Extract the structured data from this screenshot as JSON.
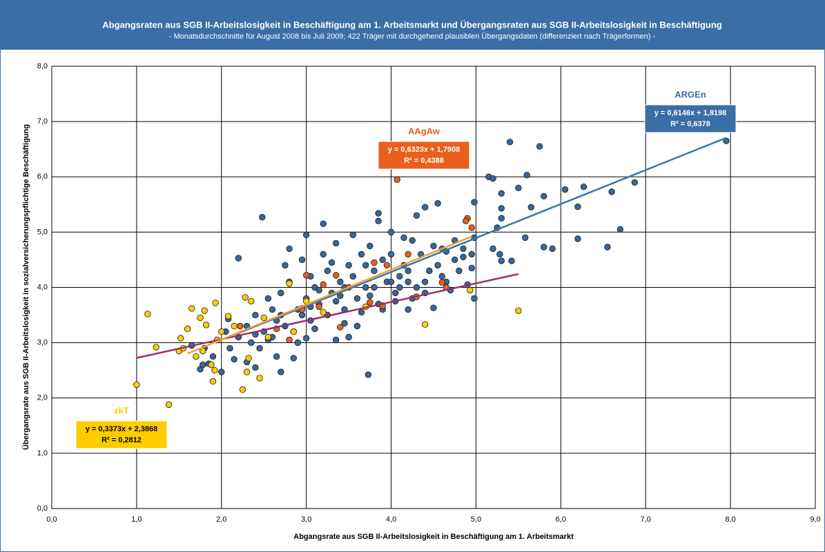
{
  "chart_data": {
    "type": "scatter",
    "title": "Abgangsraten aus SGB II-Arbeitslosigkeit in Beschäftigung am 1. Arbeitsmarkt und Übergangsraten aus SGB II-Arbeitslosigkeit in Beschäftigung",
    "subtitle": "- Monatsdurchschnitte für August 2008 bis Juli 2009; 422 Träger mit durchgehend plausiblen Übergangsdaten (differenziert nach Trägerformen) -",
    "x_label": "Abgangsrate aus SGB II-Arbeitslosigkeit in Beschäftigung am 1. Arbeitsmarkt",
    "y_label": "Übergangsrate aus SGB II-Arbeitslosigkeit in sozialversicherungspflichtige Beschäftigung",
    "xlim": [
      0,
      9
    ],
    "ylim": [
      0,
      8
    ],
    "grid": true,
    "xticks": [
      {
        "value": 0,
        "label": "0,0"
      },
      {
        "value": 1,
        "label": "1,0"
      },
      {
        "value": 2,
        "label": "2,0"
      },
      {
        "value": 3,
        "label": "3,0"
      },
      {
        "value": 4,
        "label": "4,0"
      },
      {
        "value": 5,
        "label": "5,0"
      },
      {
        "value": 6,
        "label": "6,0"
      },
      {
        "value": 7,
        "label": "7,0"
      },
      {
        "value": 8,
        "label": "8,0"
      },
      {
        "value": 9,
        "label": "9,0"
      }
    ],
    "yticks": [
      {
        "value": 0,
        "label": "0,0"
      },
      {
        "value": 1,
        "label": "1,0"
      },
      {
        "value": 2,
        "label": "2,0"
      },
      {
        "value": 3,
        "label": "3,0"
      },
      {
        "value": 4,
        "label": "4,0"
      },
      {
        "value": 5,
        "label": "5,0"
      },
      {
        "value": 6,
        "label": "6,0"
      },
      {
        "value": 7,
        "label": "7,0"
      },
      {
        "value": 8,
        "label": "8,0"
      }
    ],
    "series": [
      {
        "name": "ARGEn",
        "color": "#3a6796",
        "line_color": "#3f74a9",
        "trend": {
          "equation": "y = 0,6146x + 1,8198",
          "r2": "R² = 0,6378",
          "slope": 0.6146,
          "intercept": 1.8198,
          "x_range": [
            2.2,
            7.95
          ]
        },
        "x": [
          7.95,
          5.4,
          5.75,
          5.15,
          5.6,
          5.2,
          6.05,
          6.27,
          6.6,
          6.87,
          5.8,
          5.5,
          5.3,
          6.2,
          5.65,
          5.3,
          4.98,
          4.55,
          4.4,
          5.3,
          5.25,
          6.7,
          5.58,
          6.2,
          6.55,
          5.8,
          5.9,
          5.2,
          5.28,
          5.3,
          5.42,
          4.98,
          4.95,
          4.98,
          4.5,
          4.2,
          3.73,
          2.48,
          3.2,
          2.2,
          2.7,
          1.65,
          1.75,
          1.78,
          1.85,
          2.0,
          2.08,
          2.4,
          2.65,
          2.85,
          3.35,
          3.5,
          3.0,
          2.3,
          2.4,
          2.5,
          2.6,
          2.7,
          2.75,
          2.8,
          2.9,
          2.95,
          3.0,
          3.05,
          3.1,
          3.15,
          3.2,
          3.25,
          3.3,
          3.35,
          3.4,
          3.45,
          3.5,
          3.55,
          3.6,
          3.65,
          3.7,
          3.75,
          3.8,
          3.85,
          3.9,
          3.95,
          4.0,
          4.05,
          4.1,
          4.15,
          4.2,
          4.25,
          4.3,
          4.35,
          4.4,
          4.45,
          4.5,
          4.55,
          4.6,
          4.65,
          4.7,
          4.75,
          4.8,
          4.85,
          4.9,
          2.35,
          2.45,
          2.55,
          2.65,
          2.85,
          3.05,
          3.25,
          3.45,
          3.65,
          3.85,
          4.05,
          2.2,
          2.1,
          2.05,
          1.9,
          1.8,
          2.15,
          2.3,
          2.55,
          2.8,
          3.0,
          3.3,
          3.55,
          3.85,
          4.0,
          4.3,
          3.6,
          3.9,
          4.25,
          4.6,
          4.85,
          3.45,
          3.15,
          2.95,
          2.75,
          3.7,
          4.1,
          4.4,
          3.35,
          3.1,
          2.6,
          2.9,
          3.75,
          4.15,
          3.8,
          4.0,
          4.2,
          2.4,
          2.7,
          3.05,
          3.4,
          4.65,
          4.75,
          4.95
        ],
        "values": [
          6.65,
          6.63,
          6.55,
          6.0,
          6.03,
          5.97,
          5.77,
          5.82,
          5.73,
          5.9,
          5.65,
          5.8,
          5.7,
          5.46,
          5.45,
          5.43,
          5.54,
          5.52,
          5.45,
          5.25,
          5.08,
          5.05,
          4.9,
          4.88,
          4.73,
          4.73,
          4.7,
          4.7,
          4.6,
          4.48,
          4.48,
          4.9,
          4.35,
          3.8,
          3.63,
          3.6,
          2.42,
          5.27,
          5.15,
          4.53,
          2.47,
          2.95,
          2.52,
          2.6,
          2.62,
          2.47,
          3.43,
          2.55,
          2.75,
          2.72,
          3.05,
          3.1,
          3.08,
          3.3,
          3.5,
          3.2,
          3.6,
          3.9,
          4.4,
          4.1,
          3.6,
          4.5,
          3.8,
          4.2,
          4.0,
          3.7,
          4.6,
          4.3,
          3.9,
          4.8,
          4.1,
          3.6,
          4.4,
          4.2,
          3.8,
          4.6,
          4.0,
          4.75,
          4.3,
          5.2,
          4.5,
          4.1,
          4.6,
          3.9,
          4.2,
          4.4,
          4.1,
          4.85,
          4.0,
          4.6,
          3.9,
          4.3,
          4.75,
          4.4,
          4.2,
          4.65,
          3.95,
          4.85,
          4.3,
          4.7,
          4.05,
          3.0,
          2.9,
          3.05,
          3.4,
          3.2,
          3.4,
          3.5,
          3.35,
          3.55,
          3.7,
          3.75,
          3.1,
          2.9,
          3.2,
          2.75,
          2.9,
          2.7,
          2.65,
          3.8,
          4.7,
          4.95,
          4.45,
          4.95,
          5.34,
          5.0,
          5.3,
          3.3,
          3.6,
          3.8,
          4.7,
          4.55,
          4.0,
          3.95,
          3.5,
          3.3,
          4.4,
          4.0,
          4.1,
          3.75,
          3.25,
          3.1,
          3.0,
          3.85,
          4.9,
          4.0,
          4.1,
          4.3,
          3.15,
          3.5,
          3.65,
          3.85,
          4.1,
          4.5,
          4.6
        ]
      },
      {
        "name": "zkT",
        "color": "#ffcc00",
        "line_color": "#9b2d6a",
        "trend": {
          "equation": "y = 0,3373x + 2,3868",
          "r2": "R² = 0,2812",
          "slope": 0.3373,
          "intercept": 2.3868,
          "x_range": [
            1.0,
            5.5
          ]
        },
        "x": [
          1.0,
          1.13,
          1.23,
          1.38,
          1.5,
          1.52,
          1.55,
          1.6,
          1.65,
          1.7,
          1.75,
          1.8,
          1.82,
          1.9,
          1.92,
          1.93,
          1.95,
          2.0,
          1.88,
          2.08,
          2.15,
          2.25,
          2.28,
          2.3,
          2.35,
          2.45,
          2.5,
          2.55,
          2.8,
          2.85,
          2.95,
          3.0,
          3.2,
          3.7,
          4.4,
          4.93,
          5.5,
          2.32,
          1.78
        ],
        "values": [
          2.24,
          3.52,
          2.92,
          1.88,
          2.85,
          3.08,
          2.9,
          3.25,
          3.62,
          2.75,
          3.45,
          3.58,
          3.32,
          2.3,
          2.5,
          3.72,
          3.05,
          3.2,
          2.6,
          3.48,
          3.3,
          2.15,
          3.82,
          2.47,
          3.75,
          2.36,
          3.45,
          3.1,
          4.07,
          3.2,
          3.62,
          3.75,
          3.55,
          3.65,
          3.33,
          3.95,
          3.58,
          2.72,
          2.85
        ]
      },
      {
        "name": "AAgAw",
        "color": "#e8601c",
        "line_color": "#f0a030",
        "trend": {
          "equation": "y = 0,6323x + 1,7908",
          "r2": "R² = 0,4388",
          "slope": 0.6323,
          "intercept": 1.7908,
          "x_range": [
            1.6,
            4.95
          ]
        },
        "x": [
          4.07,
          4.9,
          4.95,
          4.88,
          3.5,
          3.35,
          3.75,
          3.9,
          3.8,
          4.3,
          4.6,
          4.65,
          2.22,
          2.8,
          3.0,
          3.2,
          2.95,
          3.4,
          3.95,
          2.65,
          4.2,
          3.15
        ],
        "values": [
          5.95,
          5.25,
          5.08,
          5.2,
          4.0,
          4.22,
          3.73,
          3.67,
          4.45,
          3.83,
          4.09,
          4.0,
          3.3,
          3.05,
          4.22,
          4.05,
          3.6,
          3.28,
          4.4,
          3.25,
          4.6,
          3.65
        ]
      }
    ]
  }
}
